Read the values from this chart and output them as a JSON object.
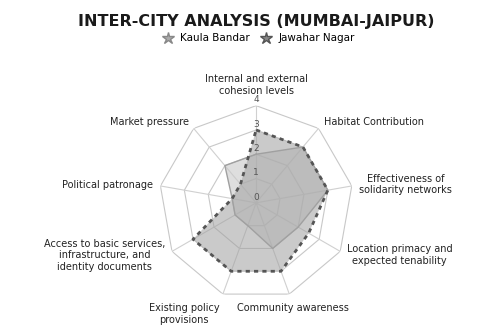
{
  "title": "INTER-CITY ANALYSIS (MUMBAI-JAIPUR)",
  "categories": [
    "Internal and external\ncohesion levels",
    "Habitat Contribution",
    "Effectiveness of\nsolidarity networks",
    "Location primacy and\nexpected tenability",
    "Community awareness",
    "Existing policy\nprovisions",
    "Access to basic services,\ninfrastructure, and\nidentity documents",
    "Political patronage",
    "Market pressure"
  ],
  "series": [
    {
      "label": "Kaula Bandar",
      "values": [
        2,
        3,
        3,
        2,
        2,
        1,
        1,
        1,
        2
      ],
      "facecolor": "#c8c8c8",
      "edgecolor": "#a0a0a0",
      "alpha": 0.6,
      "linestyle": "solid",
      "linewidth": 1.0
    },
    {
      "label": "Jawahar Nagar",
      "values": [
        3,
        3,
        3,
        2.5,
        3,
        3,
        3,
        1,
        1
      ],
      "facecolor": "#a0a0a0",
      "edgecolor": "#555555",
      "alpha": 0.55,
      "linestyle": "dotted",
      "linewidth": 2.0
    }
  ],
  "max_value": 4,
  "tick_values": [
    0,
    1,
    2,
    3,
    4
  ],
  "grid_color": "#c8c8c8",
  "spoke_color": "#d0d0d0",
  "background_color": "#ffffff",
  "title_fontsize": 11.5,
  "label_fontsize": 7.0,
  "legend_fontsize": 7.5,
  "tick_fontsize": 6.5
}
